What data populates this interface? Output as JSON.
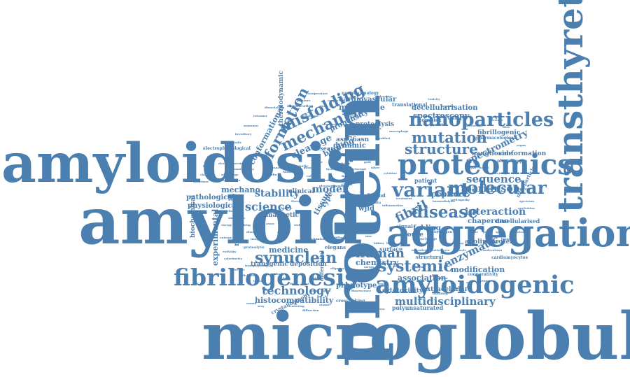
{
  "colors": {
    "word": "#4a7fb0",
    "background": "#ffffff"
  },
  "words": {
    "amyloidosis": "amyloidosis",
    "amyloid": "amyloid",
    "microglobulin": "microglobulin",
    "protein": "protein",
    "transthyretin": "transthyretin",
    "aggregation": "aggregation",
    "proteomics": "proteomics",
    "amyloidogenic": "amyloidogenic",
    "fibrillogenesis": "fibrillogenesis",
    "nanoparticles": "nanoparticles",
    "mechanism": "mechanism",
    "misfolding": "misfolding",
    "formation": "formation",
    "variant": "variant",
    "molecular": "molecular",
    "disease": "disease",
    "mutation": "mutation",
    "structure": "structure",
    "synuclein": "synuclein",
    "systemic": "systemic",
    "human": "human",
    "science": "science",
    "stability": "stability",
    "model": "model",
    "fibril": "fibril",
    "sequence": "sequence",
    "parkinson": "parkinson",
    "interaction": "interaction",
    "spectrometry": "spectrometry",
    "enzymatic": "enzymatic",
    "technology": "technology",
    "multidisciplinary": "multidisciplinary",
    "histocompatibility": "histocompatibility",
    "spectroscopy": "spectroscopy",
    "decellularisation": "decellularisation",
    "conformational": "conformational",
    "thermodynamic": "thermodynamic",
    "cardiovascular": "cardiovascular",
    "membrane": "membrane",
    "proteolysis": "proteolysis",
    "cleavage": "cleavage",
    "binding": "binding",
    "dynamic": "dynamic",
    "mechano": "mechano",
    "pathological": "pathological",
    "physiological": "physiological",
    "biochemical": "biochemical",
    "experimental": "experimental",
    "resonance": "resonance",
    "magnetic": "magnetic",
    "medicine": "medicine",
    "transgenic": "transgenic",
    "deposition": "deposition",
    "phenotype": "phenotype",
    "chemistry": "chemistry",
    "result": "result",
    "association": "association",
    "modification": "modification",
    "extracellular": "extracellular",
    "cytotoxicity": "cytotoxicity",
    "polyunsaturated": "polyunsaturated",
    "apolipoprotein": "apolipoprotein",
    "chaperone": "chaperone",
    "conformation": "conformation",
    "ganglioside": "ganglioside",
    "fibrillogenic": "fibrillogenic",
    "decellularised": "decellularised",
    "peptide": "peptide",
    "folding": "folding",
    "clinical": "clinical",
    "tissue": "tissue",
    "type": "type",
    "vitro": "vitro",
    "wjld": "wjld",
    "propensity": "propensity",
    "asp76asn": "asp76asn",
    "research": "research",
    "patient": "patient",
    "mouse": "mouse",
    "signal": "signal",
    "surface": "surface",
    "translational": "translational",
    "crystallography": "crystallography",
    "crosslinking": "crosslinking",
    "nanotechnology": "nanotechnology",
    "electrophysiological": "electrophysiological",
    "nanoparticle": "nanoparticle",
    "plasminogen": "plasminogen",
    "cardiomyocytes": "cardiomyocytes",
    "pharmacological": "pharmacological",
    "diagnosis": "diagnosis",
    "aggregate": "aggregate",
    "cooperativity": "cooperativity",
    "differential": "differential",
    "elegans": "elegans",
    "structural": "structural",
    "complex": "complex",
    "proteolytic": "proteolytic",
    "identification": "identification",
    "genetic": "genetic",
    "native": "native",
    "role": "role",
    "ligand": "ligand",
    "chain": "chain",
    "data": "data",
    "exchange": "exchange",
    "hydrogen": "hydrogen",
    "fibrils": "fibrils",
    "transplantation": "transplantation",
    "mutational": "mutational",
    "residue": "residue",
    "neurodegenerative": "neurodegenerative",
    "domain": "domain",
    "containing": "containing",
    "tryptophan": "tryptophan",
    "plasma": "plasma",
    "screening": "screening",
    "neurotoxicity": "neurotoxicity",
    "nmr": "nmr",
    "oligomer": "oligomer",
    "serum": "serum",
    "dialysis": "dialysis",
    "inhibitor": "inhibitor",
    "kinetic": "kinetic",
    "therapy": "therapy",
    "assay": "assay",
    "cell": "cell",
    "dimer": "dimer",
    "imaging": "imaging",
    "antibody": "antibody",
    "lipid": "lipid",
    "beta": "beta",
    "heart": "heart",
    "drug": "drug",
    "vivo": "vivo",
    "gene": "gene",
    "fluorescence": "fluorescence",
    "renal": "renal",
    "unfolding": "unfolding",
    "mass": "mass",
    "acid": "acid",
    "cellular": "cellular",
    "molecule": "molecule",
    "tau": "tau",
    "brain": "brain",
    "protease": "protease",
    "nucleation": "nucleation",
    "spectrum": "spectrum",
    "analysis": "analysis",
    "organ": "organ",
    "blood": "blood",
    "fibre": "fibre",
    "electron": "electron",
    "microscopy": "microscopy",
    "peptides": "peptides",
    "toxicity": "toxicity",
    "glycation": "glycation",
    "copper": "copper",
    "zinc": "zinc",
    "temperature": "temperature",
    "pressure": "pressure",
    "dissociation": "dissociation",
    "tetramer": "tetramer",
    "monomer": "monomer",
    "hereditary": "hereditary",
    "sporadic": "sporadic",
    "effect": "effect",
    "light": "light",
    "chains": "chains",
    "alzheimer": "alzheimer",
    "huntington": "huntington",
    "prion": "prion",
    "insulin": "insulin",
    "lysozyme": "lysozyme",
    "collagen": "collagen",
    "heparin": "heparin",
    "glycosaminoglycan": "glycosaminoglycan",
    "stabiliser": "stabiliser",
    "doxycycline": "doxycycline",
    "tafamidis": "tafamidis",
    "diflunisal": "diflunisal",
    "kidney": "kidney",
    "liver": "liver",
    "nerve": "nerve",
    "muscle": "muscle",
    "bone": "bone",
    "joint": "joint",
    "spine": "spine",
    "carpal": "carpal",
    "tunnel": "tunnel",
    "arthropathy": "arthropathy",
    "haemodialysis": "haemodialysis",
    "treatment": "treatment",
    "inflammation": "inflammation",
    "cytokine": "cytokine",
    "macrophage": "macrophage",
    "fibroblast": "fibroblast",
    "matrix": "matrix",
    "scaffold": "scaffold",
    "graphene": "graphene",
    "gold": "gold",
    "silver": "silver",
    "surfactant": "surfactant",
    "polymer": "polymer",
    "hydrogel": "hydrogel",
    "sensor": "sensor",
    "biomarker": "biomarker",
    "immunoassay": "immunoassay",
    "chromatography": "chromatography",
    "electrophoresis": "electrophoresis",
    "sds": "sds",
    "page": "page",
    "western": "western",
    "blot": "blot",
    "elisa": "elisa",
    "simulation": "simulation",
    "docking": "docking",
    "energy": "energy",
    "entropy": "entropy",
    "enthalpy": "enthalpy",
    "calorimetry": "calorimetry",
    "circular": "circular",
    "dichroism": "dichroism",
    "infrared": "infrared",
    "raman": "raman",
    "xray": "xray",
    "scattering": "scattering",
    "diffraction": "diffraction",
    "atomic": "atomic",
    "force": "force",
    "cryo": "cryo"
  }
}
